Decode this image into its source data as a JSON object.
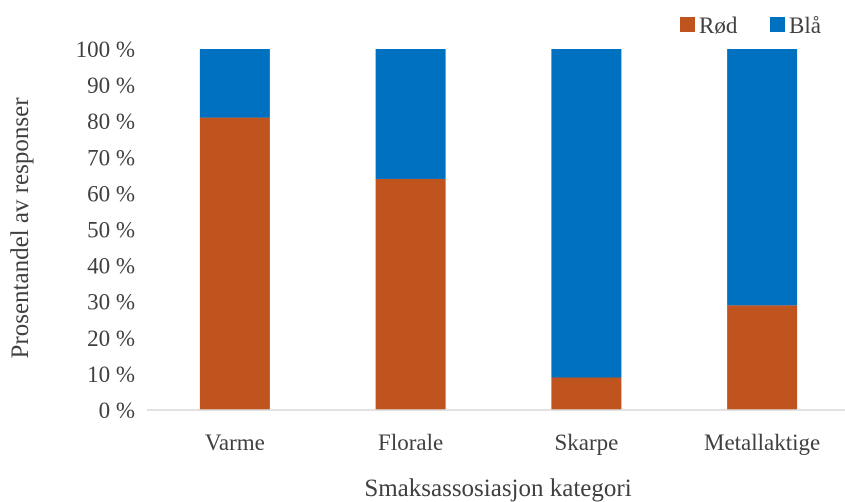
{
  "chart_data": {
    "type": "bar",
    "stacked": true,
    "xlabel": "Smaksassosiasjon kategori",
    "ylabel": "Prosentandel av responser",
    "categories": [
      "Varme",
      "Florale",
      "Skarpe",
      "Metallaktige"
    ],
    "series": [
      {
        "name": "Rød",
        "color": "#C0541F",
        "values": [
          81,
          64,
          9,
          29
        ]
      },
      {
        "name": "Blå",
        "color": "#0070C0",
        "values": [
          19,
          36,
          91,
          71
        ]
      }
    ],
    "ylim": [
      0,
      100
    ],
    "yticks": [
      "0 %",
      "10 %",
      "20 %",
      "30 %",
      "40 %",
      "50 %",
      "60 %",
      "70 %",
      "80 %",
      "90 %",
      "100 %"
    ],
    "grid": false,
    "legend_position": "top-right"
  }
}
